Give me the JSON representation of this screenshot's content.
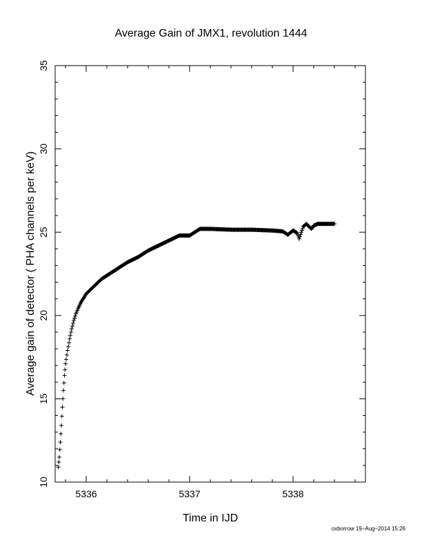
{
  "chart_data": {
    "type": "scatter",
    "title": "Average Gain of JMX1, revolution 1444",
    "xlabel": "Time in IJD",
    "ylabel": "Average gain of detector ( PHA channels per keV)",
    "xlim": [
      5335.7,
      5338.7
    ],
    "ylim": [
      10,
      35
    ],
    "xticks": [
      5336,
      5337,
      5338
    ],
    "yticks": [
      10,
      15,
      20,
      25,
      30,
      35
    ],
    "marker": "plus",
    "grid": false,
    "series": [
      {
        "x": [
          5335.73,
          5335.74,
          5335.75,
          5335.76,
          5335.77,
          5335.78,
          5335.79,
          5335.8,
          5335.82,
          5335.84,
          5335.86,
          5335.88,
          5335.9,
          5335.92,
          5335.95,
          5335.98,
          5336.0,
          5336.05,
          5336.1,
          5336.15,
          5336.2,
          5336.3,
          5336.4,
          5336.5,
          5336.6,
          5336.7,
          5336.8,
          5336.9,
          5336.96,
          5337.0,
          5337.05,
          5337.1,
          5337.2,
          5337.4,
          5337.6,
          5337.8,
          5337.9,
          5337.95,
          5338.0,
          5338.04,
          5338.06,
          5338.08,
          5338.1,
          5338.13,
          5338.16,
          5338.18,
          5338.2,
          5338.24,
          5338.28,
          5338.35,
          5338.4
        ],
        "y": [
          10.9,
          11.5,
          12.4,
          13.4,
          14.5,
          15.5,
          16.4,
          17.1,
          17.9,
          18.6,
          19.2,
          19.7,
          20.1,
          20.4,
          20.8,
          21.1,
          21.3,
          21.6,
          21.9,
          22.2,
          22.4,
          22.8,
          23.2,
          23.5,
          23.9,
          24.2,
          24.5,
          24.8,
          24.8,
          24.8,
          25.0,
          25.2,
          25.2,
          25.15,
          25.15,
          25.1,
          25.05,
          24.85,
          25.1,
          24.95,
          24.6,
          25.0,
          25.35,
          25.5,
          25.3,
          25.2,
          25.4,
          25.5,
          25.5,
          25.5,
          25.5
        ]
      }
    ]
  },
  "footer": {
    "credit": "oxborrow 19–Aug–2014 15:26"
  }
}
